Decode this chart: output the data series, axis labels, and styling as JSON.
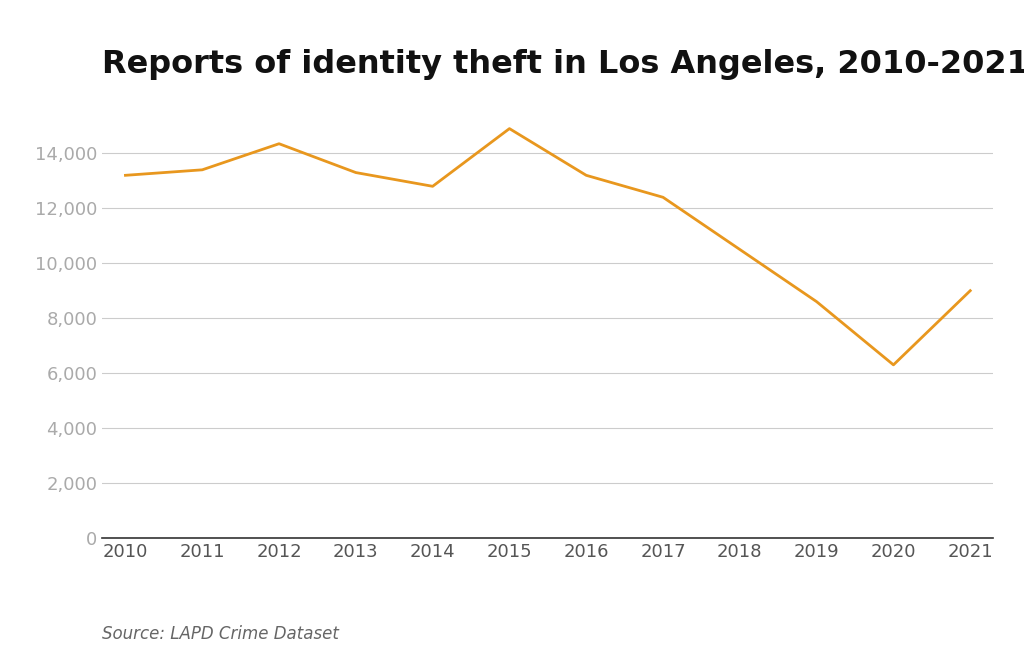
{
  "years": [
    2010,
    2011,
    2012,
    2013,
    2014,
    2015,
    2016,
    2017,
    2018,
    2019,
    2020,
    2021
  ],
  "values": [
    13200,
    13400,
    14350,
    13300,
    12800,
    14900,
    13200,
    12400,
    10500,
    8600,
    6300,
    9000
  ],
  "line_color": "#E8971E",
  "line_width": 2.0,
  "title": "Reports of identity theft in Los Angeles, 2010-2021",
  "title_fontsize": 23,
  "title_fontweight": "bold",
  "source_text": "Source: LAPD Crime Dataset",
  "source_fontsize": 12,
  "ylim": [
    0,
    16000
  ],
  "yticks": [
    0,
    2000,
    4000,
    6000,
    8000,
    10000,
    12000,
    14000
  ],
  "background_color": "#ffffff",
  "grid_color": "#cccccc",
  "tick_label_fontsize": 13,
  "y_tick_color": "#aaaaaa",
  "x_tick_color": "#555555",
  "title_color": "#111111",
  "source_color": "#666666"
}
